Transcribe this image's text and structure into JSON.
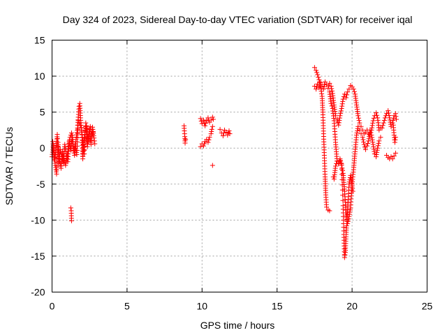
{
  "chart_data": {
    "type": "scatter",
    "title": "Day 324 of 2023, Sidereal Day-to-day VTEC variation (SDTVAR) for receiver iqal",
    "xlabel": "GPS time / hours",
    "ylabel": "SDTVAR / TECUs",
    "xlim": [
      0,
      25
    ],
    "ylim": [
      -20,
      15
    ],
    "xticks": [
      0,
      5,
      10,
      15,
      20,
      25
    ],
    "yticks": [
      -20,
      -15,
      -10,
      -5,
      0,
      5,
      10,
      15
    ],
    "grid": true,
    "marker": "+",
    "marker_color": "#ff0000",
    "series": [
      {
        "name": "SDTVAR",
        "tracks": [
          [
            [
              0.0,
              -1.2
            ],
            [
              0.1,
              0.4
            ],
            [
              0.2,
              -2.1
            ],
            [
              0.3,
              -3.6
            ],
            [
              0.4,
              0.8
            ],
            [
              0.5,
              -1.5
            ],
            [
              0.6,
              -2.8
            ],
            [
              0.7,
              -0.5
            ],
            [
              0.8,
              -1.8
            ],
            [
              0.9,
              -2.4
            ],
            [
              1.0,
              -1.1
            ],
            [
              1.1,
              0.2
            ],
            [
              1.2,
              1.5
            ],
            [
              1.3,
              2.1
            ],
            [
              1.4,
              0.3
            ],
            [
              1.5,
              -1.0
            ],
            [
              1.6,
              1.2
            ],
            [
              1.7,
              2.8
            ],
            [
              1.8,
              5.8
            ],
            [
              1.85,
              6.2
            ],
            [
              1.9,
              4.2
            ],
            [
              2.0,
              1.5
            ],
            [
              2.05,
              -1.5
            ],
            [
              2.1,
              0.8
            ],
            [
              2.2,
              2.2
            ],
            [
              2.3,
              3.1
            ],
            [
              2.4,
              1.0
            ],
            [
              2.5,
              2.6
            ],
            [
              2.6,
              0.5
            ],
            [
              2.7,
              2.9
            ],
            [
              2.8,
              1.4
            ],
            [
              2.85,
              0.6
            ]
          ],
          [
            [
              0.05,
              0.9
            ],
            [
              0.15,
              -1.6
            ],
            [
              0.25,
              -0.6
            ],
            [
              0.35,
              1.9
            ],
            [
              0.45,
              -2.5
            ],
            [
              0.55,
              -0.2
            ],
            [
              0.65,
              -1.2
            ],
            [
              0.75,
              -2.0
            ],
            [
              0.85,
              0.5
            ],
            [
              0.95,
              -0.8
            ],
            [
              1.05,
              -1.9
            ],
            [
              1.15,
              1.0
            ],
            [
              1.25,
              -0.3
            ],
            [
              1.35,
              1.8
            ],
            [
              1.45,
              -0.4
            ],
            [
              1.55,
              0.6
            ],
            [
              1.65,
              -0.9
            ],
            [
              1.75,
              3.8
            ],
            [
              1.95,
              2.8
            ],
            [
              2.15,
              -0.8
            ],
            [
              2.25,
              3.5
            ],
            [
              2.35,
              0.2
            ],
            [
              2.45,
              1.9
            ],
            [
              2.55,
              3.0
            ],
            [
              2.65,
              1.6
            ],
            [
              2.75,
              2.2
            ]
          ],
          [
            [
              1.25,
              -8.3
            ],
            [
              1.28,
              -8.7
            ],
            [
              1.3,
              -10.1
            ]
          ],
          [
            [
              8.8,
              3.1
            ],
            [
              8.82,
              2.4
            ],
            [
              8.85,
              1.6
            ],
            [
              8.87,
              0.7
            ],
            [
              8.9,
              1.2
            ]
          ],
          [
            [
              9.9,
              4.1
            ],
            [
              10.0,
              3.4
            ],
            [
              10.1,
              3.9
            ],
            [
              10.2,
              3.1
            ],
            [
              10.3,
              3.8
            ],
            [
              10.4,
              4.2
            ],
            [
              10.5,
              3.6
            ],
            [
              10.6,
              3.9
            ],
            [
              10.7,
              4.3
            ],
            [
              10.75,
              4.0
            ]
          ],
          [
            [
              9.9,
              0.2
            ],
            [
              10.0,
              0.6
            ],
            [
              10.1,
              0.3
            ],
            [
              10.2,
              0.9
            ],
            [
              10.3,
              1.2
            ],
            [
              10.4,
              0.8
            ],
            [
              10.5,
              1.5
            ],
            [
              10.6,
              2.0
            ],
            [
              10.65,
              2.6
            ],
            [
              10.7,
              3.0
            ]
          ],
          [
            [
              10.7,
              -2.4
            ]
          ],
          [
            [
              11.2,
              2.6
            ],
            [
              11.3,
              2.1
            ],
            [
              11.4,
              1.7
            ],
            [
              11.5,
              2.5
            ],
            [
              11.6,
              2.2
            ],
            [
              11.7,
              1.8
            ],
            [
              11.8,
              2.4
            ],
            [
              11.85,
              2.0
            ]
          ],
          [
            [
              17.5,
              11.2
            ],
            [
              17.6,
              10.8
            ],
            [
              17.7,
              10.2
            ],
            [
              17.8,
              9.5
            ],
            [
              17.9,
              8.6
            ],
            [
              18.0,
              7.2
            ],
            [
              18.05,
              5.0
            ],
            [
              18.1,
              2.0
            ],
            [
              18.15,
              -1.0
            ],
            [
              18.2,
              -4.0
            ],
            [
              18.25,
              -6.5
            ],
            [
              18.3,
              -8.2
            ],
            [
              18.4,
              -8.6
            ],
            [
              18.5,
              -8.7
            ]
          ],
          [
            [
              17.5,
              8.6
            ],
            [
              17.6,
              8.2
            ],
            [
              17.7,
              8.9
            ],
            [
              17.8,
              8.4
            ],
            [
              17.9,
              9.1
            ],
            [
              18.0,
              8.6
            ],
            [
              18.1,
              8.2
            ],
            [
              18.2,
              9.2
            ],
            [
              18.3,
              8.8
            ],
            [
              18.4,
              8.3
            ],
            [
              18.5,
              9.0
            ],
            [
              18.6,
              8.6
            ],
            [
              18.7,
              7.6
            ],
            [
              18.8,
              6.0
            ],
            [
              18.9,
              4.5
            ],
            [
              19.0,
              4.0
            ],
            [
              19.1,
              3.2
            ],
            [
              19.2,
              4.5
            ],
            [
              19.3,
              5.5
            ],
            [
              19.4,
              6.8
            ],
            [
              19.5,
              7.5
            ],
            [
              19.6,
              7.0
            ],
            [
              19.7,
              7.8
            ],
            [
              19.8,
              8.2
            ],
            [
              19.9,
              8.7
            ],
            [
              20.0,
              8.5
            ],
            [
              20.1,
              8.2
            ],
            [
              20.2,
              7.5
            ],
            [
              20.3,
              6.0
            ],
            [
              20.4,
              4.5
            ],
            [
              20.5,
              3.5
            ],
            [
              20.6,
              3.0
            ],
            [
              20.7,
              2.5
            ],
            [
              20.8,
              2.0
            ],
            [
              20.9,
              2.2
            ],
            [
              21.0,
              2.5
            ],
            [
              21.1,
              2.0
            ],
            [
              21.2,
              1.8
            ],
            [
              21.3,
              2.5
            ],
            [
              21.4,
              3.8
            ],
            [
              21.5,
              4.5
            ],
            [
              21.6,
              4.9
            ],
            [
              21.7,
              4.2
            ],
            [
              21.8,
              2.5
            ],
            [
              21.9,
              2.8
            ],
            [
              22.0,
              2.8
            ],
            [
              22.1,
              3.5
            ],
            [
              22.2,
              4.2
            ],
            [
              22.3,
              4.8
            ],
            [
              22.4,
              5.2
            ],
            [
              22.5,
              4.2
            ],
            [
              22.6,
              3.0
            ],
            [
              22.7,
              3.5
            ],
            [
              22.8,
              4.5
            ],
            [
              22.9,
              4.8
            ],
            [
              22.95,
              4.0
            ]
          ],
          [
            [
              18.5,
              7.8
            ],
            [
              18.6,
              6.2
            ],
            [
              18.7,
              5.5
            ],
            [
              18.8,
              3.8
            ],
            [
              18.9,
              0.8
            ],
            [
              19.0,
              -1.8
            ],
            [
              19.1,
              -2.2
            ],
            [
              19.2,
              -1.5
            ],
            [
              19.3,
              -2.4
            ],
            [
              19.4,
              -3.5
            ],
            [
              19.5,
              -6.0
            ],
            [
              19.6,
              -9.0
            ],
            [
              19.7,
              -10.5
            ],
            [
              19.8,
              -9.5
            ],
            [
              19.9,
              -8.3
            ],
            [
              20.0,
              -5.0
            ],
            [
              20.1,
              -3.0
            ],
            [
              20.2,
              -0.5
            ],
            [
              20.3,
              1.8
            ],
            [
              20.4,
              3.0
            ],
            [
              20.5,
              2.5
            ],
            [
              20.6,
              2.0
            ],
            [
              20.7,
              1.5
            ],
            [
              20.8,
              0.5
            ],
            [
              20.9,
              -0.2
            ],
            [
              21.0,
              0.3
            ],
            [
              21.1,
              1.0
            ],
            [
              21.2,
              2.5
            ],
            [
              21.3,
              1.8
            ],
            [
              21.4,
              0.5
            ],
            [
              21.5,
              -0.8
            ],
            [
              21.6,
              -1.2
            ],
            [
              21.7,
              0.0
            ],
            [
              21.8,
              1.0
            ],
            [
              21.9,
              1.5
            ]
          ],
          [
            [
              18.75,
              -4.0
            ],
            [
              18.8,
              -4.3
            ],
            [
              18.9,
              -2.5
            ],
            [
              19.0,
              -1.8
            ],
            [
              19.1,
              -2.1
            ],
            [
              19.2,
              -1.7
            ],
            [
              19.3,
              -2.2
            ],
            [
              19.4,
              -8.0
            ],
            [
              19.45,
              -12.0
            ],
            [
              19.5,
              -15.2
            ],
            [
              19.55,
              -14.5
            ],
            [
              19.6,
              -12.0
            ],
            [
              19.65,
              -10.5
            ],
            [
              19.7,
              -8.5
            ],
            [
              19.8,
              -5.0
            ],
            [
              19.9,
              -3.8
            ],
            [
              20.0,
              -5.2
            ],
            [
              20.05,
              -6.0
            ]
          ],
          [
            [
              22.3,
              -1.0
            ],
            [
              22.4,
              -1.3
            ],
            [
              22.5,
              -1.5
            ],
            [
              22.6,
              -1.2
            ],
            [
              22.7,
              -1.5
            ],
            [
              22.8,
              -1.1
            ],
            [
              22.9,
              -0.7
            ]
          ],
          [
            [
              22.75,
              3.2
            ],
            [
              22.8,
              1.8
            ],
            [
              22.85,
              0.8
            ],
            [
              22.9,
              1.5
            ]
          ]
        ]
      }
    ]
  }
}
